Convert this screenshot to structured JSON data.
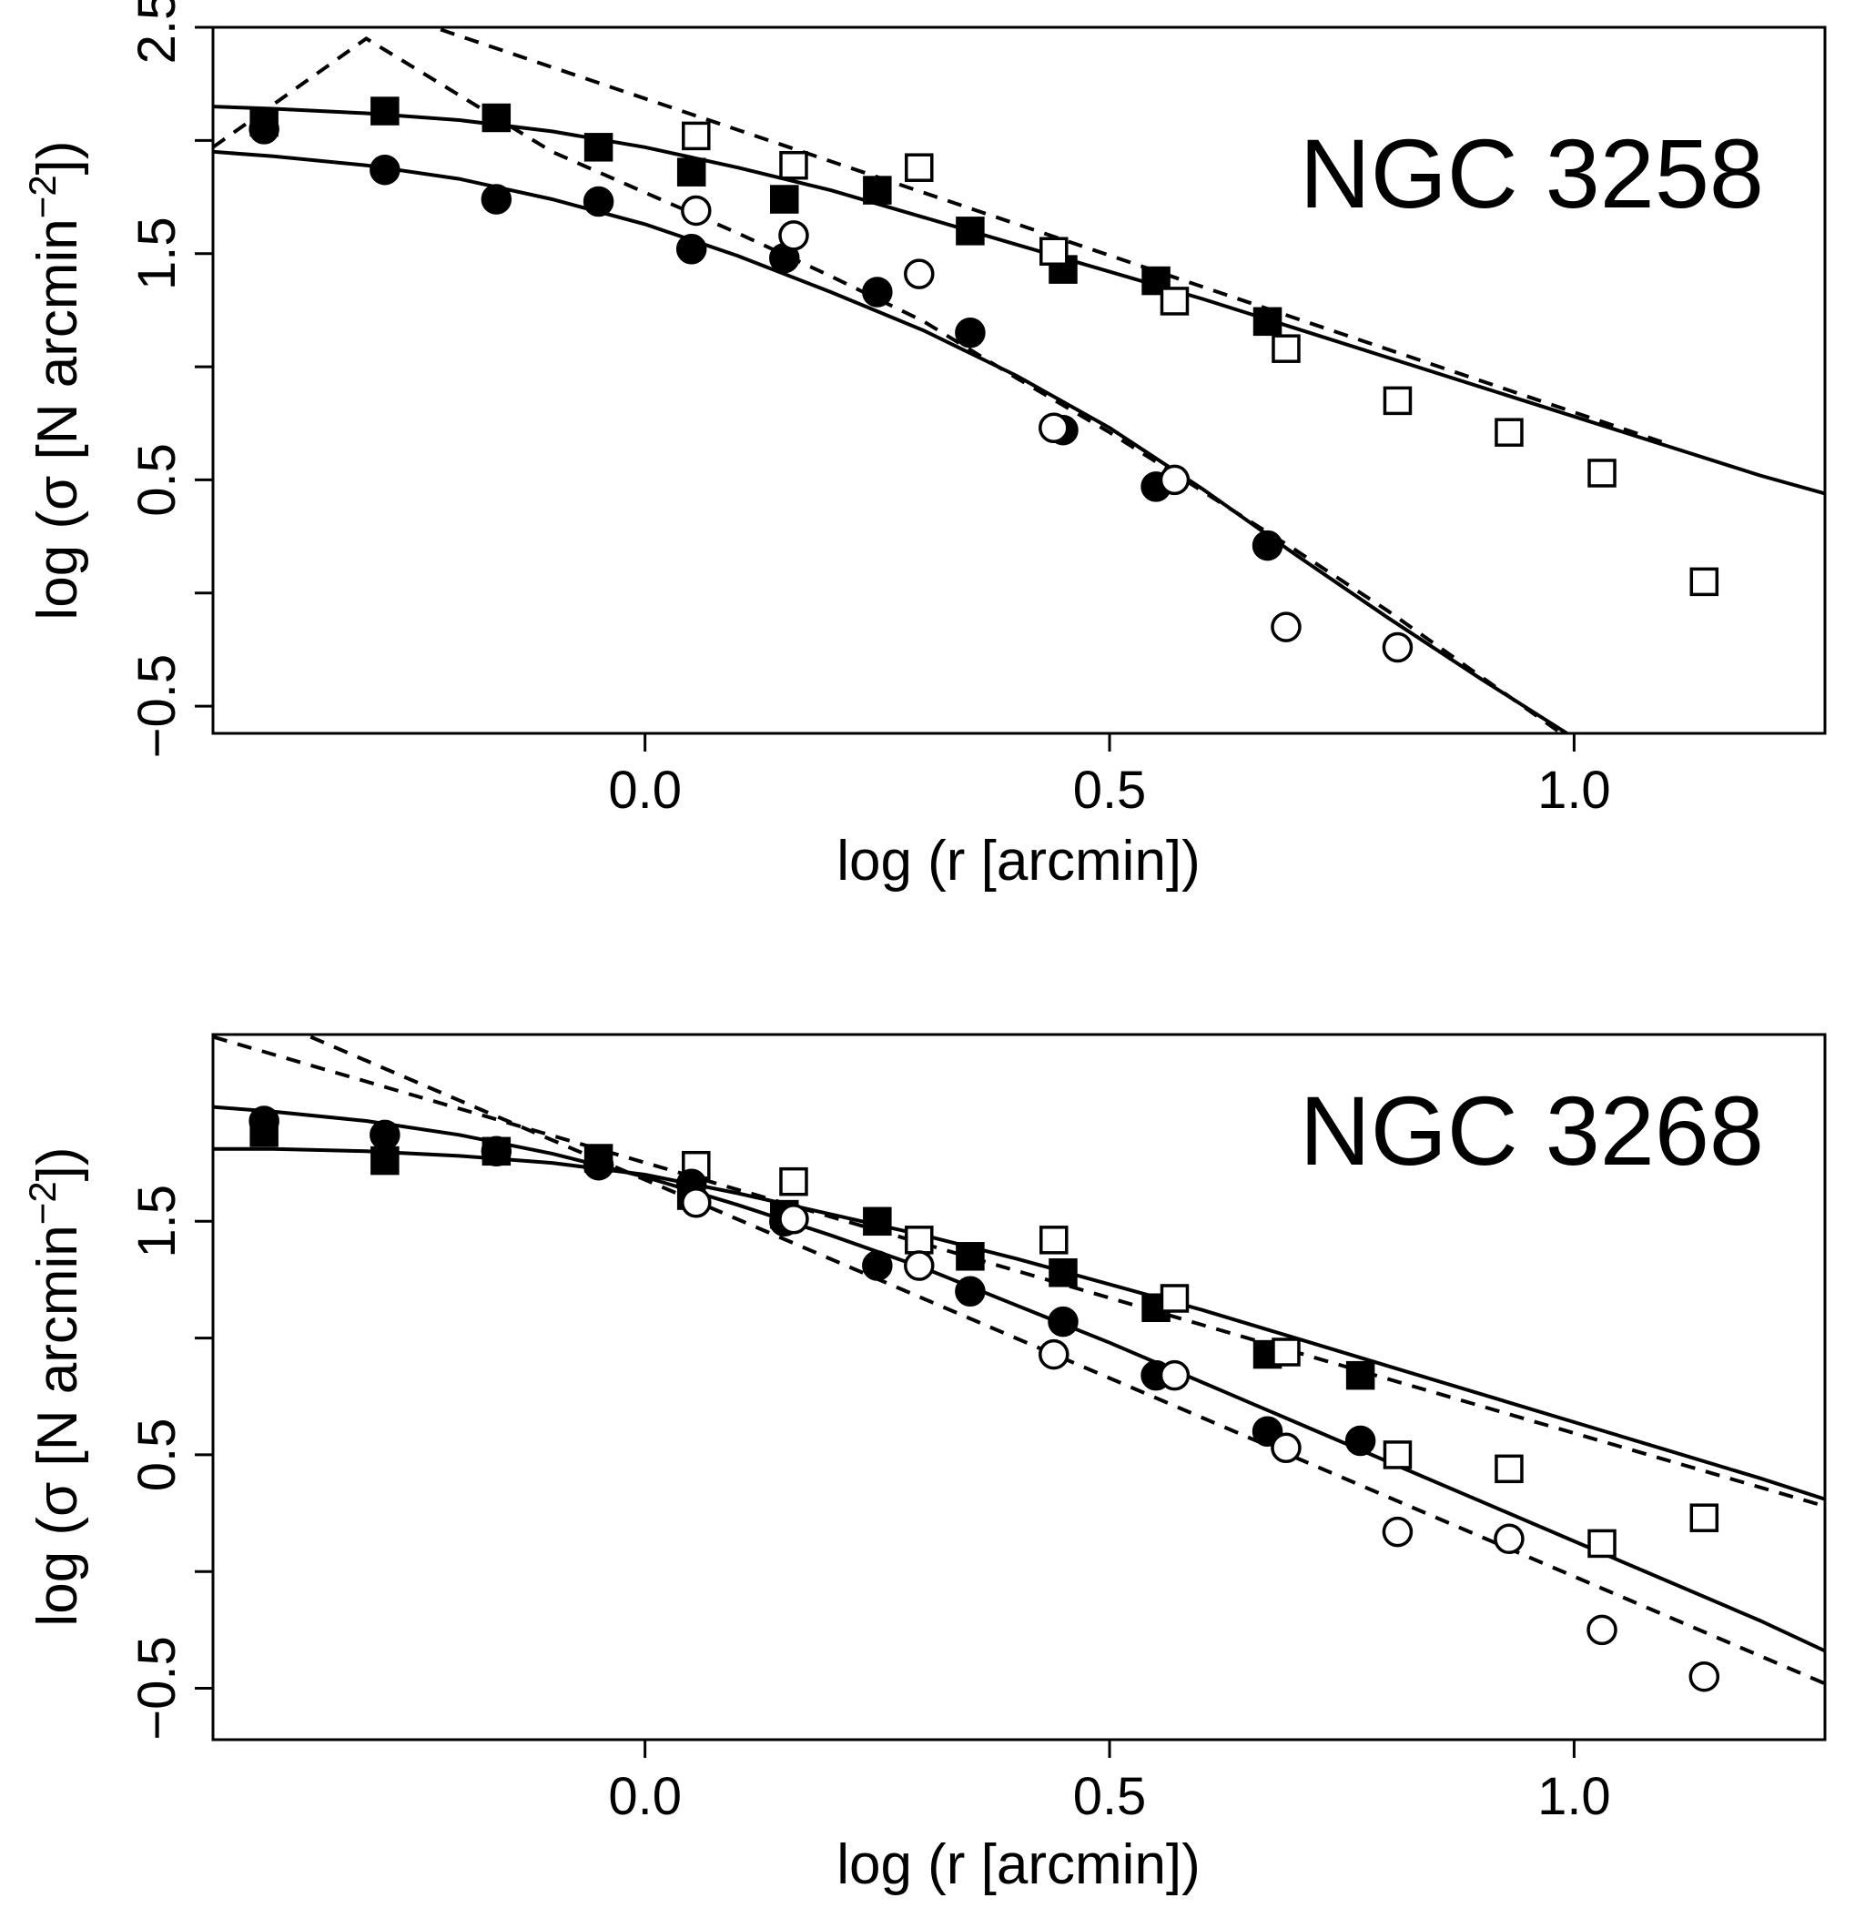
{
  "figure": {
    "background": "#ffffff",
    "ink": "#000000"
  },
  "chart_data": [
    {
      "type": "scatter",
      "title": "NGC 3258",
      "xlabel": "log (r [arcmin])",
      "ylabel_parts": {
        "prefix": "log (σ [N arcmin",
        "superscript": "−2",
        "suffix": "])"
      },
      "xlim": [
        -0.465,
        1.27
      ],
      "ylim": [
        -0.62,
        2.5
      ],
      "xticks": [
        {
          "value": 0.0,
          "label": "0.0"
        },
        {
          "value": 0.5,
          "label": "0.5"
        },
        {
          "value": 1.0,
          "label": "1.0"
        }
      ],
      "yticks": [
        -0.5,
        0,
        0.5,
        1,
        1.5,
        2,
        2.5
      ],
      "ytick_labels": [
        {
          "value": -0.5,
          "label": "−0.5"
        },
        {
          "value": 0.5,
          "label": "0.5"
        },
        {
          "value": 1.5,
          "label": "1.5"
        },
        {
          "value": 2.5,
          "label": "2.5"
        }
      ],
      "grid": false,
      "points": [
        {
          "name": "filled-squares",
          "marker": "square",
          "filled": true,
          "x": [
            -0.41,
            -0.28,
            -0.16,
            -0.05,
            0.05,
            0.15,
            0.25,
            0.35,
            0.45,
            0.55,
            0.67
          ],
          "y": [
            2.08,
            2.13,
            2.1,
            1.97,
            1.86,
            1.74,
            1.78,
            1.6,
            1.43,
            1.38,
            1.2
          ]
        },
        {
          "name": "open-squares",
          "marker": "square",
          "filled": false,
          "x": [
            0.055,
            0.16,
            0.295,
            0.44,
            0.57,
            0.69,
            0.81,
            0.93,
            1.03,
            1.14
          ],
          "y": [
            2.02,
            1.89,
            1.88,
            1.51,
            1.29,
            1.08,
            0.85,
            0.71,
            0.53,
            0.05
          ]
        },
        {
          "name": "filled-circles",
          "marker": "circle",
          "filled": true,
          "x": [
            -0.41,
            -0.28,
            -0.16,
            -0.05,
            0.05,
            0.15,
            0.25,
            0.35,
            0.45,
            0.55,
            0.67
          ],
          "y": [
            2.05,
            1.87,
            1.74,
            1.73,
            1.52,
            1.48,
            1.33,
            1.15,
            0.72,
            0.47,
            0.21
          ]
        },
        {
          "name": "open-circles",
          "marker": "circle",
          "filled": false,
          "x": [
            0.055,
            0.16,
            0.295,
            0.44,
            0.57,
            0.69,
            0.81
          ],
          "y": [
            1.69,
            1.58,
            1.41,
            0.73,
            0.5,
            -0.15,
            -0.24
          ]
        }
      ],
      "curves": [
        {
          "name": "upper-fit-solid",
          "style": "solid",
          "x": [
            -0.465,
            -0.4,
            -0.3,
            -0.2,
            -0.1,
            0.0,
            0.1,
            0.2,
            0.3,
            0.4,
            0.5,
            0.6,
            0.7,
            0.8,
            0.9,
            1.0,
            1.1,
            1.2,
            1.27
          ],
          "y": [
            2.15,
            2.14,
            2.12,
            2.09,
            2.04,
            1.97,
            1.88,
            1.78,
            1.66,
            1.54,
            1.42,
            1.3,
            1.17,
            1.04,
            0.91,
            0.78,
            0.65,
            0.52,
            0.44
          ]
        },
        {
          "name": "upper-fit-dashed",
          "style": "dashed",
          "x": [
            -0.22,
            1.1
          ],
          "y": [
            2.49,
            0.66
          ]
        },
        {
          "name": "lower-fit-solid",
          "style": "solid",
          "x": [
            -0.465,
            -0.4,
            -0.3,
            -0.2,
            -0.1,
            0.0,
            0.1,
            0.2,
            0.3,
            0.4,
            0.5,
            0.6,
            0.7,
            0.8,
            0.9,
            1.0,
            1.02
          ],
          "y": [
            1.95,
            1.93,
            1.89,
            1.83,
            1.74,
            1.63,
            1.49,
            1.33,
            1.16,
            0.96,
            0.73,
            0.46,
            0.17,
            -0.11,
            -0.38,
            -0.64,
            -0.69
          ]
        },
        {
          "name": "lower-fit-dashed",
          "style": "dashed",
          "x": [
            -0.465,
            -0.3,
            -0.2,
            -0.1,
            0.0,
            0.1,
            0.2,
            0.3,
            0.4,
            0.5,
            0.6,
            0.7,
            0.8,
            0.9,
            1.0
          ],
          "y": [
            1.97,
            2.45,
            2.2,
            1.95,
            1.77,
            1.59,
            1.4,
            1.2,
            0.95,
            0.71,
            0.45,
            0.19,
            -0.08,
            -0.37,
            -0.66
          ]
        }
      ]
    },
    {
      "type": "scatter",
      "title": "NGC 3268",
      "xlabel": "log (r [arcmin])",
      "ylabel_parts": {
        "prefix": "log (σ [N arcmin",
        "superscript": "−2",
        "suffix": "])"
      },
      "xlim": [
        -0.465,
        1.27
      ],
      "ylim": [
        -0.72,
        2.3
      ],
      "xticks": [
        {
          "value": 0.0,
          "label": "0.0"
        },
        {
          "value": 0.5,
          "label": "0.5"
        },
        {
          "value": 1.0,
          "label": "1.0"
        }
      ],
      "yticks": [
        -0.5,
        0,
        0.5,
        1,
        1.5
      ],
      "ytick_labels": [
        {
          "value": -0.5,
          "label": "−0.5"
        },
        {
          "value": 0.5,
          "label": "0.5"
        },
        {
          "value": 1.5,
          "label": "1.5"
        }
      ],
      "grid": false,
      "points": [
        {
          "name": "filled-squares",
          "marker": "square",
          "filled": true,
          "x": [
            -0.41,
            -0.28,
            -0.16,
            -0.05,
            0.05,
            0.15,
            0.25,
            0.35,
            0.45,
            0.55,
            0.67,
            0.77
          ],
          "y": [
            1.88,
            1.76,
            1.8,
            1.77,
            1.61,
            1.53,
            1.5,
            1.35,
            1.28,
            1.13,
            0.93,
            0.84
          ]
        },
        {
          "name": "open-squares",
          "marker": "square",
          "filled": false,
          "x": [
            0.055,
            0.16,
            0.295,
            0.44,
            0.57,
            0.69,
            0.81,
            0.93,
            1.03,
            1.14
          ],
          "y": [
            1.74,
            1.67,
            1.42,
            1.42,
            1.17,
            0.94,
            0.5,
            0.44,
            0.12,
            0.23
          ]
        },
        {
          "name": "filled-circles",
          "marker": "circle",
          "filled": true,
          "x": [
            -0.41,
            -0.28,
            -0.16,
            -0.05,
            0.05,
            0.15,
            0.25,
            0.35,
            0.45,
            0.55,
            0.67,
            0.77
          ],
          "y": [
            1.93,
            1.87,
            1.8,
            1.74,
            1.66,
            1.5,
            1.31,
            1.2,
            1.07,
            0.84,
            0.6,
            0.56
          ]
        },
        {
          "name": "open-circles",
          "marker": "circle",
          "filled": false,
          "x": [
            0.055,
            0.16,
            0.295,
            0.44,
            0.57,
            0.69,
            0.81,
            0.93,
            1.03,
            1.14
          ],
          "y": [
            1.58,
            1.51,
            1.31,
            0.93,
            0.84,
            0.53,
            0.17,
            0.14,
            -0.25,
            -0.45
          ]
        }
      ],
      "curves": [
        {
          "name": "squares-fit-solid",
          "style": "solid",
          "x": [
            -0.465,
            -0.4,
            -0.3,
            -0.2,
            -0.1,
            0.0,
            0.1,
            0.2,
            0.3,
            0.4,
            0.5,
            0.6,
            0.7,
            0.8,
            0.9,
            1.0,
            1.1,
            1.2,
            1.27
          ],
          "y": [
            1.81,
            1.81,
            1.8,
            1.78,
            1.75,
            1.7,
            1.62,
            1.53,
            1.44,
            1.34,
            1.23,
            1.12,
            1.0,
            0.88,
            0.76,
            0.64,
            0.52,
            0.4,
            0.31
          ]
        },
        {
          "name": "circles-fit-solid",
          "style": "solid",
          "x": [
            -0.465,
            -0.4,
            -0.3,
            -0.2,
            -0.1,
            0.0,
            0.1,
            0.2,
            0.3,
            0.4,
            0.5,
            0.6,
            0.7,
            0.8,
            0.9,
            1.0,
            1.1,
            1.2,
            1.27
          ],
          "y": [
            1.99,
            1.97,
            1.93,
            1.87,
            1.79,
            1.69,
            1.57,
            1.44,
            1.3,
            1.14,
            0.98,
            0.81,
            0.64,
            0.47,
            0.3,
            0.13,
            -0.04,
            -0.21,
            -0.34
          ]
        },
        {
          "name": "squares-fit-dashed",
          "style": "dashed",
          "x": [
            -0.465,
            1.27
          ],
          "y": [
            2.29,
            0.28
          ]
        },
        {
          "name": "circles-fit-dashed",
          "style": "dashed",
          "x": [
            -0.36,
            1.27
          ],
          "y": [
            2.29,
            -0.48
          ]
        }
      ]
    }
  ]
}
